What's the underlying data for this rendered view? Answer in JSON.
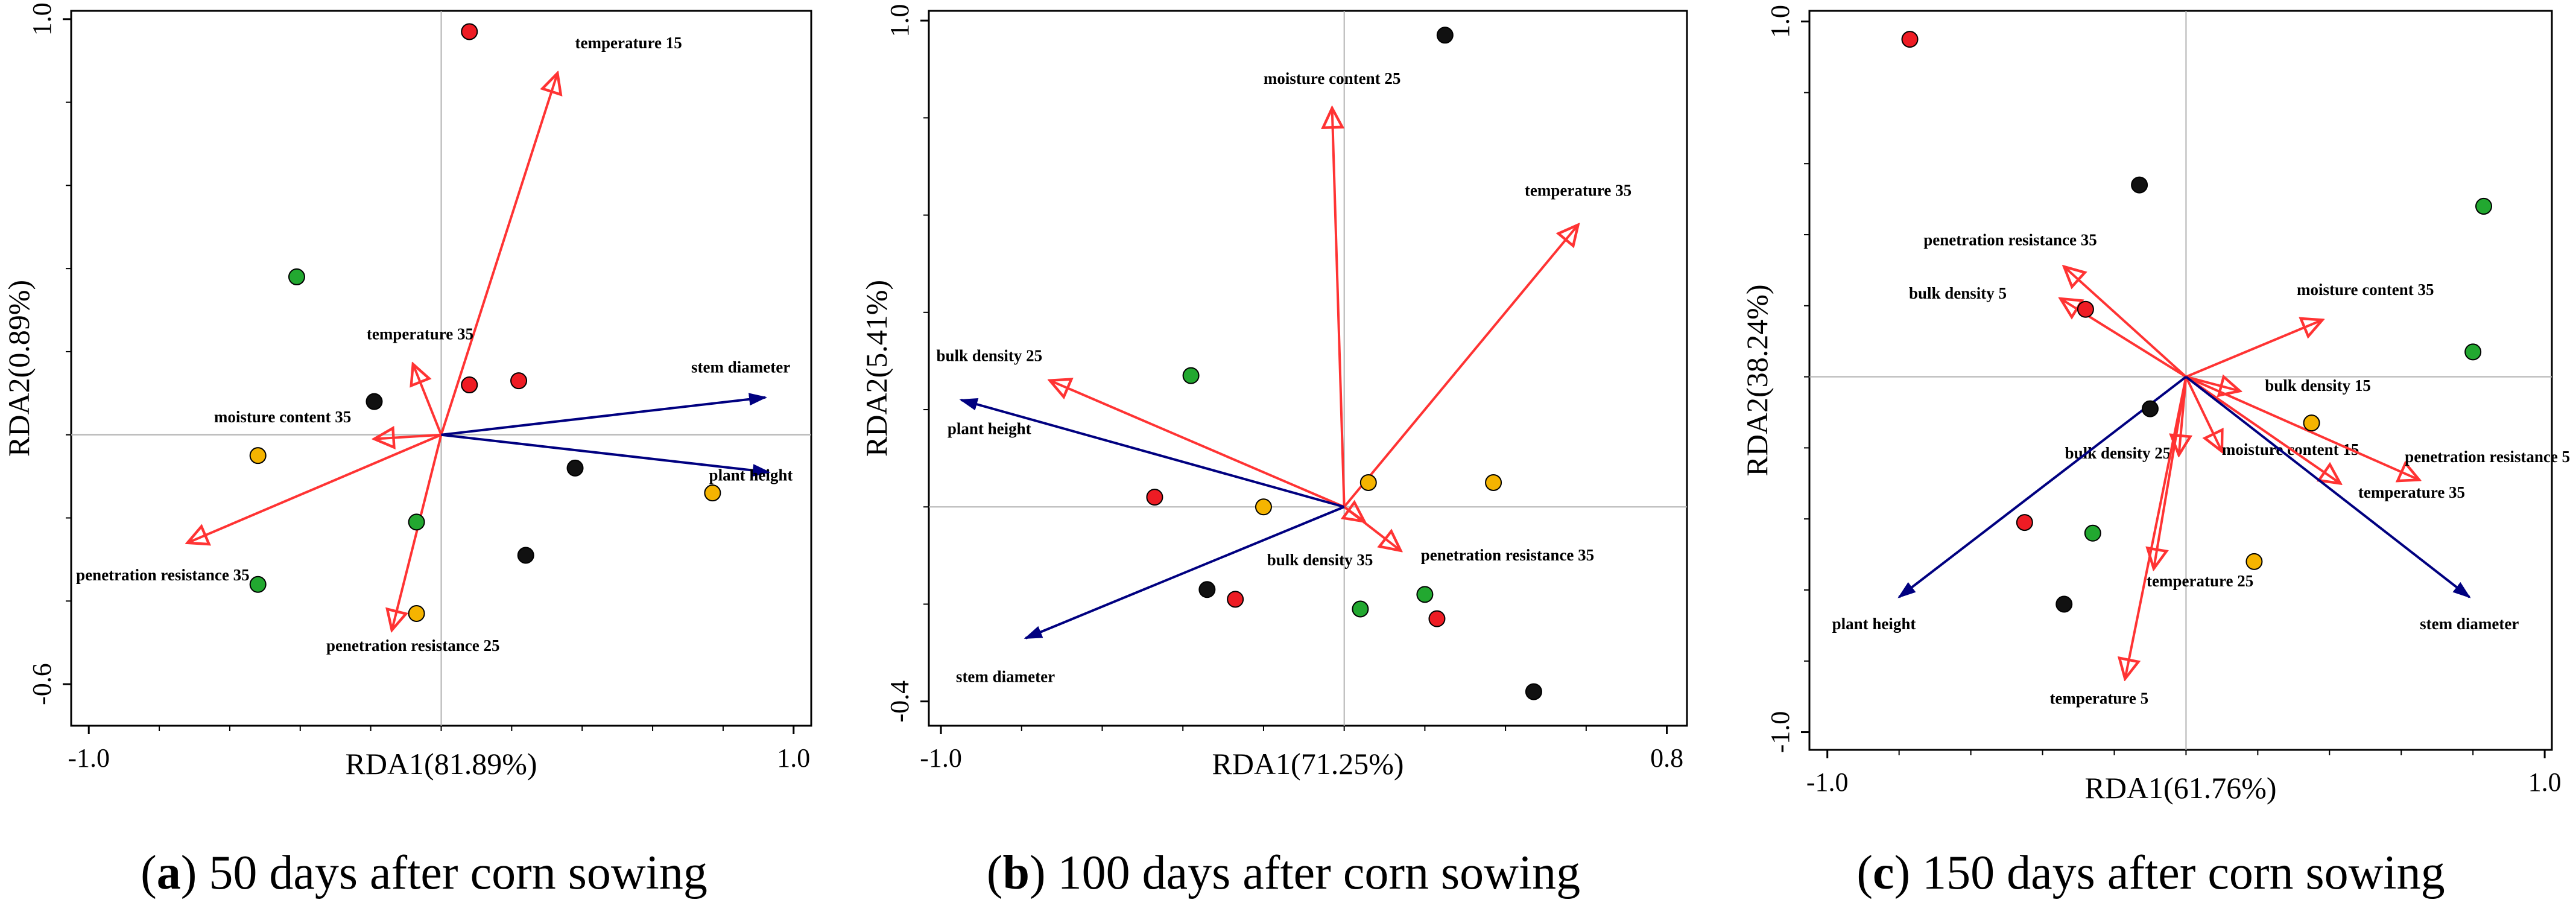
{
  "chart_data": [
    {
      "type": "scatter",
      "subtype": "rda-biplot",
      "caption": {
        "letter": "a",
        "text": ") 50 days after corn sowing",
        "prefix": "("
      },
      "xlabel": "RDA1(81.89%)",
      "ylabel": "RDA2(0.89%)",
      "xlim": [
        -1.05,
        1.05
      ],
      "ylim": [
        -0.7,
        1.02
      ],
      "x_ticks": [
        {
          "value": -1.0,
          "label": "-1.0"
        },
        {
          "value": 1.0,
          "label": "1.0"
        }
      ],
      "y_ticks": [
        {
          "value": 1.0,
          "label": "1.0"
        },
        {
          "value": -0.6,
          "label": "-0.6"
        }
      ],
      "vectors": [
        {
          "name": "temperature 15",
          "x": 0.33,
          "y": 0.87,
          "color": "#ff3333",
          "kind": "open"
        },
        {
          "name": "temperature 35",
          "x": -0.08,
          "y": 0.17,
          "color": "#ff3333",
          "kind": "open"
        },
        {
          "name": "moisture content 35",
          "x": -0.19,
          "y": -0.01,
          "color": "#ff3333",
          "kind": "open"
        },
        {
          "name": "penetration resistance 35",
          "x": -0.72,
          "y": -0.26,
          "color": "#ff3333",
          "kind": "open"
        },
        {
          "name": "penetration resistance 25",
          "x": -0.14,
          "y": -0.47,
          "color": "#ff3333",
          "kind": "open"
        },
        {
          "name": "stem diameter",
          "x": 0.92,
          "y": 0.09,
          "color": "#000080",
          "kind": "filled"
        },
        {
          "name": "plant height",
          "x": 0.93,
          "y": -0.09,
          "color": "#000080",
          "kind": "filled"
        }
      ],
      "label_offsets": [
        {
          "name": "temperature 15",
          "dx": 0.05,
          "dy": 0.06,
          "anchor": "start"
        },
        {
          "name": "temperature 35",
          "dx": 0.02,
          "dy": 0.06,
          "anchor": "middle"
        },
        {
          "name": "moisture content 35",
          "dx": -0.26,
          "dy": 0.04,
          "anchor": "middle"
        },
        {
          "name": "penetration resistance 35",
          "dx": -0.07,
          "dy": -0.09,
          "anchor": "middle"
        },
        {
          "name": "penetration resistance 25",
          "dx": 0.06,
          "dy": -0.05,
          "anchor": "middle"
        },
        {
          "name": "stem diameter",
          "dx": -0.07,
          "dy": 0.06,
          "anchor": "middle"
        },
        {
          "name": "plant height",
          "dx": -0.17,
          "dy": -0.02,
          "anchor": "start"
        }
      ],
      "points": [
        {
          "x": 0.08,
          "y": 0.97,
          "color": "red"
        },
        {
          "x": -0.41,
          "y": 0.38,
          "color": "green"
        },
        {
          "x": -0.19,
          "y": 0.08,
          "color": "black"
        },
        {
          "x": 0.08,
          "y": 0.12,
          "color": "red"
        },
        {
          "x": 0.22,
          "y": 0.13,
          "color": "red"
        },
        {
          "x": -0.52,
          "y": -0.05,
          "color": "orange"
        },
        {
          "x": 0.38,
          "y": -0.08,
          "color": "black"
        },
        {
          "x": 0.77,
          "y": -0.14,
          "color": "orange"
        },
        {
          "x": -0.07,
          "y": -0.21,
          "color": "green"
        },
        {
          "x": 0.24,
          "y": -0.29,
          "color": "black"
        },
        {
          "x": -0.52,
          "y": -0.36,
          "color": "green"
        },
        {
          "x": -0.07,
          "y": -0.43,
          "color": "orange"
        }
      ]
    },
    {
      "type": "scatter",
      "subtype": "rda-biplot",
      "caption": {
        "letter": "b",
        "text": ") 100 days after corn sowing",
        "prefix": "("
      },
      "xlabel": "RDA1(71.25%)",
      "ylabel": "RDA2(5.41%)",
      "xlim": [
        -1.03,
        0.85
      ],
      "ylim": [
        -0.45,
        1.02
      ],
      "x_ticks": [
        {
          "value": -1.0,
          "label": "-1.0"
        },
        {
          "value": 0.8,
          "label": "0.8"
        }
      ],
      "y_ticks": [
        {
          "value": 1.0,
          "label": "1.0"
        },
        {
          "value": -0.4,
          "label": "-0.4"
        }
      ],
      "vectors": [
        {
          "name": "moisture content 25",
          "x": -0.03,
          "y": 0.82,
          "color": "#ff3333",
          "kind": "open"
        },
        {
          "name": "temperature 35",
          "x": 0.58,
          "y": 0.58,
          "color": "#ff3333",
          "kind": "open"
        },
        {
          "name": "bulk density 25",
          "x": -0.73,
          "y": 0.26,
          "color": "#ff3333",
          "kind": "open"
        },
        {
          "name": "penetration resistance 35",
          "x": 0.14,
          "y": -0.09,
          "color": "#ff3333",
          "kind": "open"
        },
        {
          "name": "bulk density 35",
          "x": 0.05,
          "y": -0.03,
          "color": "#ff3333",
          "kind": "open"
        },
        {
          "name": "plant height",
          "x": -0.95,
          "y": 0.22,
          "color": "#000080",
          "kind": "filled"
        },
        {
          "name": "stem diameter",
          "x": -0.79,
          "y": -0.27,
          "color": "#000080",
          "kind": "filled"
        }
      ],
      "label_offsets": [
        {
          "name": "moisture content 25",
          "dx": 0.0,
          "dy": 0.05,
          "anchor": "middle"
        },
        {
          "name": "temperature 35",
          "dx": 0.0,
          "dy": 0.06,
          "anchor": "middle"
        },
        {
          "name": "bulk density 25",
          "dx": -0.15,
          "dy": 0.04,
          "anchor": "middle"
        },
        {
          "name": "penetration resistance 35",
          "dx": 0.05,
          "dy": -0.02,
          "anchor": "start"
        },
        {
          "name": "bulk density 35",
          "dx": -0.11,
          "dy": -0.09,
          "anchor": "middle"
        },
        {
          "name": "plant height",
          "dx": 0.07,
          "dy": -0.07,
          "anchor": "middle"
        },
        {
          "name": "stem diameter",
          "dx": -0.05,
          "dy": -0.09,
          "anchor": "middle"
        }
      ],
      "points": [
        {
          "x": 0.25,
          "y": 0.97,
          "color": "black"
        },
        {
          "x": -0.38,
          "y": 0.27,
          "color": "green"
        },
        {
          "x": 0.06,
          "y": 0.05,
          "color": "orange"
        },
        {
          "x": 0.37,
          "y": 0.05,
          "color": "orange"
        },
        {
          "x": -0.47,
          "y": 0.02,
          "color": "red"
        },
        {
          "x": -0.2,
          "y": 0.0,
          "color": "orange"
        },
        {
          "x": -0.34,
          "y": -0.17,
          "color": "black"
        },
        {
          "x": -0.27,
          "y": -0.19,
          "color": "red"
        },
        {
          "x": 0.04,
          "y": -0.21,
          "color": "green"
        },
        {
          "x": 0.2,
          "y": -0.18,
          "color": "green"
        },
        {
          "x": 0.23,
          "y": -0.23,
          "color": "red"
        },
        {
          "x": 0.47,
          "y": -0.38,
          "color": "black"
        }
      ]
    },
    {
      "type": "scatter",
      "subtype": "rda-biplot",
      "caption": {
        "letter": "c",
        "text": ") 150 days after corn sowing",
        "prefix": "("
      },
      "xlabel": "RDA1(61.76%)",
      "ylabel": "RDA2(38.24%)",
      "xlim": [
        -1.05,
        1.02
      ],
      "ylim": [
        -1.05,
        1.03
      ],
      "x_ticks": [
        {
          "value": -1.0,
          "label": "-1.0"
        },
        {
          "value": 1.0,
          "label": "1.0"
        }
      ],
      "y_ticks": [
        {
          "value": 1.0,
          "label": "1.0"
        },
        {
          "value": -1.0,
          "label": "-1.0"
        }
      ],
      "vectors": [
        {
          "name": "penetration resistance 35",
          "x": -0.34,
          "y": 0.31,
          "color": "#ff3333",
          "kind": "open"
        },
        {
          "name": "bulk density 5",
          "x": -0.35,
          "y": 0.22,
          "color": "#ff3333",
          "kind": "open"
        },
        {
          "name": "moisture content 35",
          "x": 0.38,
          "y": 0.16,
          "color": "#ff3333",
          "kind": "open"
        },
        {
          "name": "bulk density 15",
          "x": 0.15,
          "y": -0.04,
          "color": "#ff3333",
          "kind": "open"
        },
        {
          "name": "bulk density 25",
          "x": -0.02,
          "y": -0.22,
          "color": "#ff3333",
          "kind": "open"
        },
        {
          "name": "moisture content 15",
          "x": 0.1,
          "y": -0.21,
          "color": "#ff3333",
          "kind": "open"
        },
        {
          "name": "penetration resistance 5",
          "x": 0.65,
          "y": -0.29,
          "color": "#ff3333",
          "kind": "open"
        },
        {
          "name": "temperature 35",
          "x": 0.43,
          "y": -0.3,
          "color": "#ff3333",
          "kind": "open"
        },
        {
          "name": "temperature 25",
          "x": -0.09,
          "y": -0.54,
          "color": "#ff3333",
          "kind": "open"
        },
        {
          "name": "temperature 5",
          "x": -0.17,
          "y": -0.85,
          "color": "#ff3333",
          "kind": "open"
        },
        {
          "name": "plant height",
          "x": -0.8,
          "y": -0.62,
          "color": "#000080",
          "kind": "filled"
        },
        {
          "name": "stem diameter",
          "x": 0.79,
          "y": -0.62,
          "color": "#000080",
          "kind": "filled"
        }
      ],
      "label_offsets": [
        {
          "name": "penetration resistance 35",
          "dx": -0.15,
          "dy": 0.06,
          "anchor": "middle"
        },
        {
          "name": "bulk density 5",
          "dx": -0.15,
          "dy": 0.0,
          "anchor": "end"
        },
        {
          "name": "moisture content 35",
          "dx": 0.12,
          "dy": 0.07,
          "anchor": "middle"
        },
        {
          "name": "bulk density 15",
          "dx": 0.07,
          "dy": 0.0,
          "anchor": "start"
        },
        {
          "name": "bulk density 25",
          "dx": -0.17,
          "dy": -0.01,
          "anchor": "middle"
        },
        {
          "name": "moisture content 15",
          "dx": 0.0,
          "dy": -0.01,
          "anchor": "start"
        },
        {
          "name": "penetration resistance 5",
          "dx": -0.04,
          "dy": 0.05,
          "anchor": "start"
        },
        {
          "name": "temperature 35",
          "dx": 0.05,
          "dy": -0.04,
          "anchor": "start"
        },
        {
          "name": "temperature 25",
          "dx": -0.02,
          "dy": -0.05,
          "anchor": "start"
        },
        {
          "name": "temperature 5",
          "dx": -0.21,
          "dy": -0.07,
          "anchor": "start"
        },
        {
          "name": "plant height",
          "dx": -0.07,
          "dy": -0.09,
          "anchor": "middle"
        },
        {
          "name": "stem diameter",
          "dx": 0.0,
          "dy": -0.09,
          "anchor": "middle"
        }
      ],
      "points": [
        {
          "x": -0.77,
          "y": 0.95,
          "color": "red"
        },
        {
          "x": -0.13,
          "y": 0.54,
          "color": "black"
        },
        {
          "x": 0.83,
          "y": 0.48,
          "color": "green"
        },
        {
          "x": -0.28,
          "y": 0.19,
          "color": "red"
        },
        {
          "x": 0.8,
          "y": 0.07,
          "color": "green"
        },
        {
          "x": -0.1,
          "y": -0.09,
          "color": "black"
        },
        {
          "x": 0.35,
          "y": -0.13,
          "color": "orange"
        },
        {
          "x": -0.45,
          "y": -0.41,
          "color": "red"
        },
        {
          "x": -0.26,
          "y": -0.44,
          "color": "green"
        },
        {
          "x": 0.19,
          "y": -0.52,
          "color": "orange"
        },
        {
          "x": -0.34,
          "y": -0.64,
          "color": "black"
        }
      ]
    }
  ],
  "point_colors": {
    "red": "#ee1c24",
    "green": "#22a830",
    "black": "#111111",
    "orange": "#f5b400"
  },
  "vector_colors": {
    "environment": "#ff3333",
    "plant": "#000080"
  }
}
